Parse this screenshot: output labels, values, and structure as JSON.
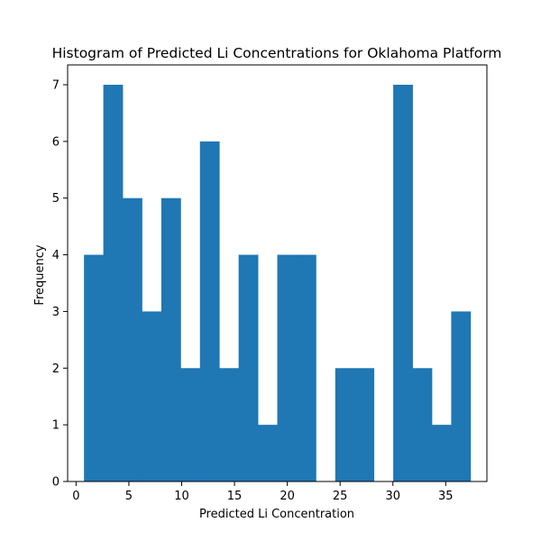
{
  "chart_data": {
    "type": "bar",
    "subtype": "histogram",
    "title": "Histogram of Predicted Li Concentrations for Oklahoma Platform",
    "xlabel": "Predicted Li Concentration",
    "ylabel": "Frequency",
    "bin_edges": [
      0.75,
      2.58,
      4.41,
      6.24,
      8.07,
      9.9,
      11.73,
      13.56,
      15.39,
      17.22,
      19.05,
      20.88,
      22.71,
      24.54,
      26.37,
      28.2,
      30.03,
      31.86,
      33.69,
      35.52,
      37.35
    ],
    "values": [
      4,
      7,
      5,
      3,
      5,
      2,
      6,
      2,
      4,
      1,
      4,
      4,
      0,
      2,
      2,
      0,
      7,
      2,
      1,
      3
    ],
    "xlim": [
      -0.8,
      38.9
    ],
    "ylim": [
      0,
      7.35
    ],
    "x_ticks": [
      0,
      5,
      10,
      15,
      20,
      25,
      30,
      35
    ],
    "y_ticks": [
      0,
      1,
      2,
      3,
      4,
      5,
      6,
      7
    ],
    "bar_color": "#1f77b4",
    "grid": false
  }
}
